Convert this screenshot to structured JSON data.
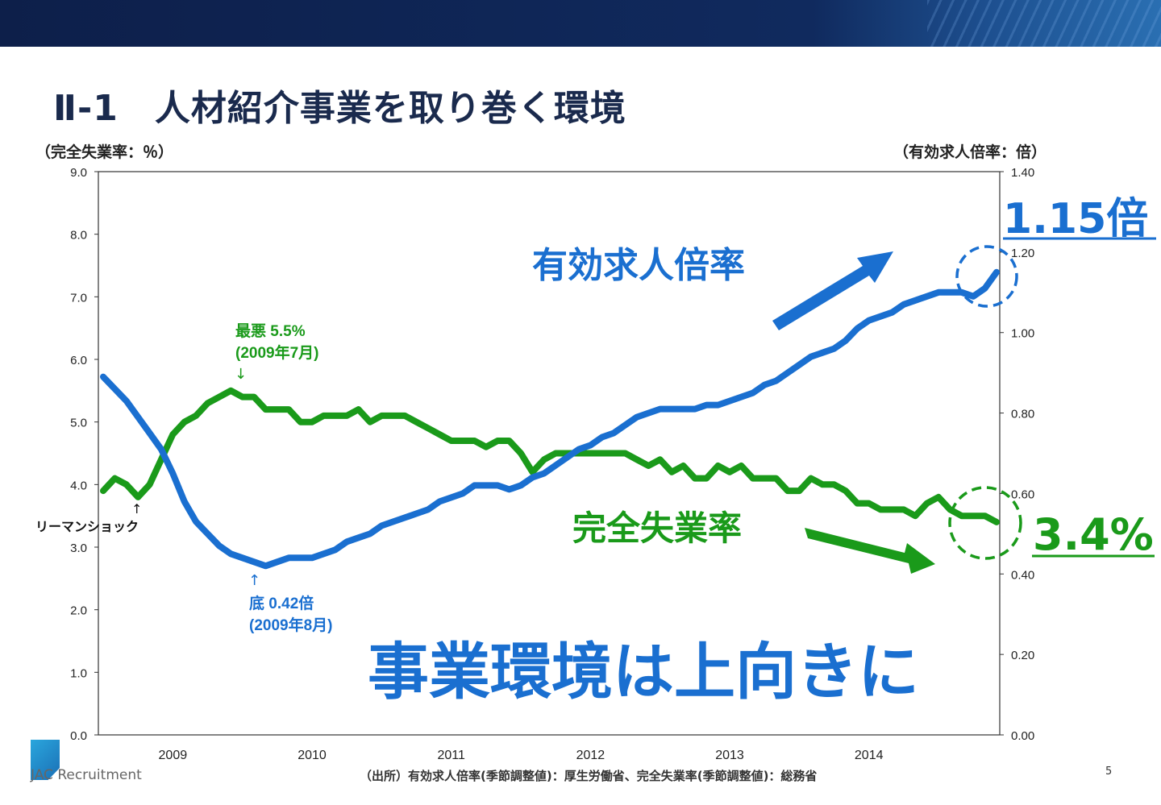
{
  "slide": {
    "title": "Ⅱ-1　人材紹介事業を取り巻く環境",
    "left_axis_unit": "（完全失業率：％）",
    "right_axis_unit": "（有効求人倍率：倍）",
    "source": "（出所）有効求人倍率(季節調整値)：厚生労働省、完全失業率(季節調整値)：総務省",
    "page_number": "5",
    "logo_text": "JAC Recruitment"
  },
  "colors": {
    "unemployment": "#1a9a1a",
    "job_ratio": "#1a6fd0",
    "header": "#0d1f4a"
  },
  "chart_data": {
    "type": "line",
    "x_labels": [
      "2009",
      "2010",
      "2011",
      "2012",
      "2013",
      "2014"
    ],
    "y_left": {
      "ylim": [
        0,
        9
      ],
      "ticks": [
        "0.0",
        "1.0",
        "2.0",
        "3.0",
        "4.0",
        "5.0",
        "6.0",
        "7.0",
        "8.0",
        "9.0"
      ]
    },
    "y_right": {
      "ylim": [
        0,
        1.4
      ],
      "ticks": [
        "0.00",
        "0.20",
        "0.40",
        "0.60",
        "0.80",
        "1.00",
        "1.20",
        "1.40"
      ]
    },
    "grid": false,
    "series": [
      {
        "name": "完全失業率",
        "axis": "left",
        "color": "#1a9a1a",
        "values": [
          3.9,
          4.1,
          4.0,
          3.8,
          4.0,
          4.4,
          4.8,
          5.0,
          5.1,
          5.3,
          5.4,
          5.5,
          5.4,
          5.4,
          5.2,
          5.2,
          5.2,
          5.0,
          5.0,
          5.1,
          5.1,
          5.1,
          5.2,
          5.0,
          5.1,
          5.1,
          5.1,
          5.0,
          4.9,
          4.8,
          4.7,
          4.7,
          4.7,
          4.6,
          4.7,
          4.7,
          4.5,
          4.2,
          4.4,
          4.5,
          4.5,
          4.5,
          4.5,
          4.5,
          4.5,
          4.5,
          4.4,
          4.3,
          4.4,
          4.2,
          4.3,
          4.1,
          4.1,
          4.3,
          4.2,
          4.3,
          4.1,
          4.1,
          4.1,
          3.9,
          3.9,
          4.1,
          4.0,
          4.0,
          3.9,
          3.7,
          3.7,
          3.6,
          3.6,
          3.6,
          3.5,
          3.7,
          3.8,
          3.6,
          3.5,
          3.5,
          3.5,
          3.4
        ]
      },
      {
        "name": "有効求人倍率",
        "axis": "right",
        "color": "#1a6fd0",
        "values": [
          0.89,
          0.86,
          0.83,
          0.79,
          0.75,
          0.71,
          0.65,
          0.58,
          0.53,
          0.5,
          0.47,
          0.45,
          0.44,
          0.43,
          0.42,
          0.43,
          0.44,
          0.44,
          0.44,
          0.45,
          0.46,
          0.48,
          0.49,
          0.5,
          0.52,
          0.53,
          0.54,
          0.55,
          0.56,
          0.58,
          0.59,
          0.6,
          0.62,
          0.62,
          0.62,
          0.61,
          0.62,
          0.64,
          0.65,
          0.67,
          0.69,
          0.71,
          0.72,
          0.74,
          0.75,
          0.77,
          0.79,
          0.8,
          0.81,
          0.81,
          0.81,
          0.81,
          0.82,
          0.82,
          0.83,
          0.84,
          0.85,
          0.87,
          0.88,
          0.9,
          0.92,
          0.94,
          0.95,
          0.96,
          0.98,
          1.01,
          1.03,
          1.04,
          1.05,
          1.07,
          1.08,
          1.09,
          1.1,
          1.1,
          1.1,
          1.09,
          1.11,
          1.15
        ]
      }
    ]
  },
  "annotations": {
    "unemployment_worst_line1": "最悪 5.5%",
    "unemployment_worst_line2": "(2009年7月)",
    "job_ratio_bottom_line1": "底 0.42倍",
    "job_ratio_bottom_line2": "(2009年8月)",
    "lehman": "リーマンショック",
    "arrow_up": "↑",
    "arrow_down": "↓",
    "job_ratio_label": "有効求人倍率",
    "unemployment_label": "完全失業率",
    "job_ratio_latest": "1.15倍",
    "unemployment_latest": "3.4%",
    "message": "事業環境は上向きに"
  }
}
